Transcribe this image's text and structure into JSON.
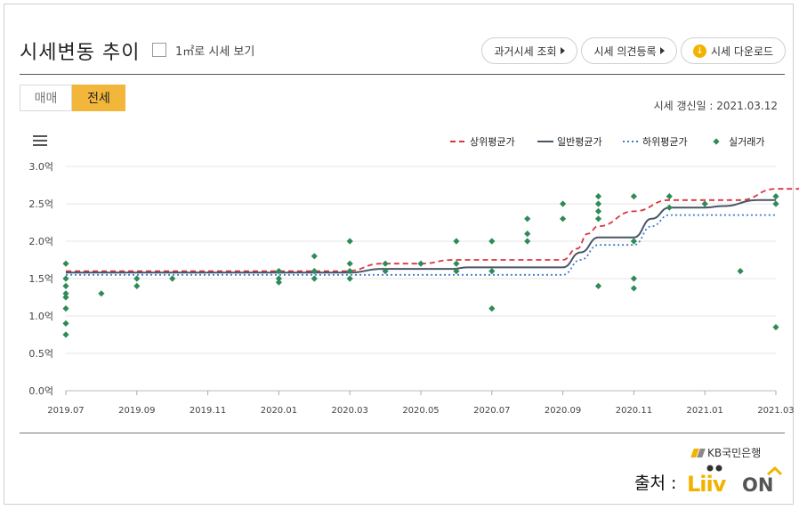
{
  "header": {
    "title": "시세변동 추이",
    "per_m2_label": "1㎡로 시세 보기",
    "past_price_button": "과거시세 조회",
    "opinion_button": "시세 의견등록",
    "download_button": "시세 다운로드"
  },
  "tabs": [
    {
      "label": "매매",
      "active": false
    },
    {
      "label": "전세",
      "active": true
    }
  ],
  "update_text": "시세 갱신일 : 2021.03.12",
  "source_label": "출처 :",
  "bank_logo_text": "KB국민은행",
  "colors": {
    "upper": "#d9343f",
    "general": "#4a5566",
    "lower": "#3d7cc9",
    "actual": "#2e8b57",
    "accent": "#f2b73a"
  },
  "chart_data": {
    "type": "line",
    "title": "",
    "xlabel": "",
    "ylabel": "",
    "unit": "억",
    "ylim": [
      0,
      3.0
    ],
    "y_ticks": [
      "0.0억",
      "0.5억",
      "1.0억",
      "1.5억",
      "2.0억",
      "2.5억",
      "3.0억"
    ],
    "x_ticks": [
      "2019.07",
      "2019.09",
      "2019.11",
      "2020.01",
      "2020.03",
      "2020.05",
      "2020.07",
      "2020.09",
      "2020.11",
      "2021.01",
      "2021.03"
    ],
    "grid": true,
    "legend_position": "top-right",
    "series": [
      {
        "name": "상위평균가",
        "style": "dashed",
        "color": "#d9343f",
        "points": [
          [
            0,
            1.6
          ],
          [
            7.9,
            1.6
          ],
          [
            8.9,
            1.7
          ],
          [
            10.0,
            1.7
          ],
          [
            10.9,
            1.75
          ],
          [
            14.0,
            1.75
          ],
          [
            14.4,
            1.9
          ],
          [
            14.7,
            2.1
          ],
          [
            15.0,
            2.2
          ],
          [
            16.0,
            2.4
          ],
          [
            17.0,
            2.55
          ],
          [
            18.0,
            2.55
          ],
          [
            19.0,
            2.55
          ],
          [
            20.0,
            2.7
          ],
          [
            20.5,
            2.7
          ],
          [
            20.8,
            2.7
          ]
        ]
      },
      {
        "name": "일반평균가",
        "style": "solid",
        "color": "#4a5566",
        "points": [
          [
            0,
            1.58
          ],
          [
            8.0,
            1.58
          ],
          [
            8.9,
            1.63
          ],
          [
            10.9,
            1.63
          ],
          [
            11.3,
            1.65
          ],
          [
            14.0,
            1.65
          ],
          [
            14.5,
            1.85
          ],
          [
            15.0,
            2.05
          ],
          [
            16.0,
            2.05
          ],
          [
            16.5,
            2.3
          ],
          [
            17.0,
            2.45
          ],
          [
            18.0,
            2.45
          ],
          [
            18.5,
            2.47
          ],
          [
            19.5,
            2.55
          ],
          [
            20.0,
            2.55
          ]
        ]
      },
      {
        "name": "하위평균가",
        "style": "dotted",
        "color": "#3d7cc9",
        "points": [
          [
            0,
            1.55
          ],
          [
            8.0,
            1.55
          ],
          [
            8.9,
            1.55
          ],
          [
            14.0,
            1.55
          ],
          [
            14.5,
            1.75
          ],
          [
            15.0,
            1.95
          ],
          [
            16.0,
            1.95
          ],
          [
            16.5,
            2.2
          ],
          [
            17.0,
            2.35
          ],
          [
            18.0,
            2.35
          ],
          [
            19.0,
            2.35
          ],
          [
            20.0,
            2.35
          ]
        ]
      },
      {
        "name": "실거래가",
        "style": "marker",
        "color": "#2e8b57",
        "points": [
          [
            0,
            1.7
          ],
          [
            0,
            1.5
          ],
          [
            0,
            1.4
          ],
          [
            0,
            1.3
          ],
          [
            0,
            1.25
          ],
          [
            0,
            1.1
          ],
          [
            0,
            0.9
          ],
          [
            0,
            0.75
          ],
          [
            1,
            1.3
          ],
          [
            2,
            1.5
          ],
          [
            2,
            1.4
          ],
          [
            3,
            1.5
          ],
          [
            6,
            1.6
          ],
          [
            6,
            1.5
          ],
          [
            6,
            1.45
          ],
          [
            7,
            1.8
          ],
          [
            7,
            1.6
          ],
          [
            7,
            1.5
          ],
          [
            8,
            2.0
          ],
          [
            8,
            1.7
          ],
          [
            8,
            1.6
          ],
          [
            8,
            1.5
          ],
          [
            9,
            1.7
          ],
          [
            9,
            1.6
          ],
          [
            10,
            1.7
          ],
          [
            11,
            2.0
          ],
          [
            11,
            1.7
          ],
          [
            11,
            1.6
          ],
          [
            12,
            2.0
          ],
          [
            12,
            1.6
          ],
          [
            12,
            1.1
          ],
          [
            13,
            2.3
          ],
          [
            13,
            2.1
          ],
          [
            13,
            2.0
          ],
          [
            14,
            2.5
          ],
          [
            14,
            2.3
          ],
          [
            15,
            2.6
          ],
          [
            15,
            2.5
          ],
          [
            15,
            2.4
          ],
          [
            15,
            2.3
          ],
          [
            15,
            1.4
          ],
          [
            16,
            2.6
          ],
          [
            16,
            2.0
          ],
          [
            16,
            1.5
          ],
          [
            16,
            1.37
          ],
          [
            17,
            2.6
          ],
          [
            17,
            2.45
          ],
          [
            18,
            2.5
          ],
          [
            19,
            1.6
          ],
          [
            20,
            2.6
          ],
          [
            20,
            2.5
          ],
          [
            20,
            0.85
          ]
        ]
      }
    ]
  }
}
